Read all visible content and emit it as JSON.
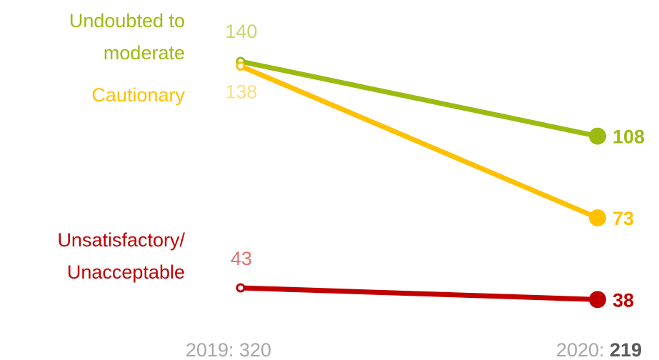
{
  "chart_data": {
    "type": "line",
    "title": "",
    "xlabel": "",
    "ylabel": "",
    "x": [
      "2019",
      "2020"
    ],
    "x_tick_labels": [
      {
        "year": "2019",
        "separator": ": ",
        "total": "320"
      },
      {
        "year": "2020",
        "separator": ": ",
        "total": "219"
      }
    ],
    "ylim": [
      30,
      150
    ],
    "grid": false,
    "legend": "none",
    "series": [
      {
        "name": "Undoubted to moderate",
        "label_lines": [
          "Undoubted to",
          "moderate"
        ],
        "values": [
          140,
          108
        ],
        "color": "#9bbb10",
        "start_label_color": "#c3d86a"
      },
      {
        "name": "Cautionary",
        "label_lines": [
          "Cautionary"
        ],
        "values": [
          138,
          73
        ],
        "color": "#ffc000",
        "start_label_color": "#ffdd80"
      },
      {
        "name": "Unsatisfactory/ Unacceptable",
        "label_lines": [
          "Unsatisfactory/",
          "Unacceptable"
        ],
        "values": [
          43,
          38
        ],
        "color": "#c00000",
        "start_label_color": "#e07070"
      }
    ]
  }
}
